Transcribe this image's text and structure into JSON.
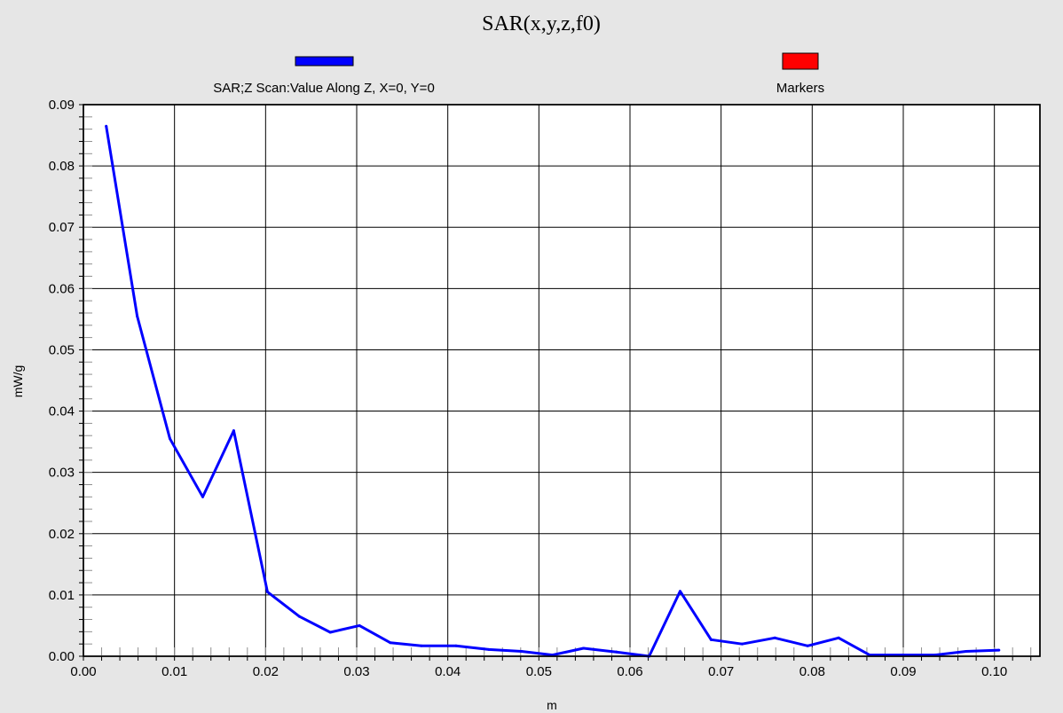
{
  "chart_data": {
    "type": "line",
    "title": "SAR(x,y,z,f0)",
    "xlabel": "m",
    "ylabel": "mW/g",
    "xlim": [
      0.0,
      0.105
    ],
    "ylim": [
      0.0,
      0.09
    ],
    "x_ticks": [
      "0.00",
      "0.01",
      "0.02",
      "0.03",
      "0.04",
      "0.05",
      "0.06",
      "0.07",
      "0.08",
      "0.09",
      "0.10"
    ],
    "y_ticks": [
      "0.00",
      "0.01",
      "0.02",
      "0.03",
      "0.04",
      "0.05",
      "0.06",
      "0.07",
      "0.08",
      "0.09"
    ],
    "grid": true,
    "legend_position": "top",
    "series": [
      {
        "name": "SAR;Z Scan:Value Along Z, X=0, Y=0",
        "color": "#0000ff",
        "x": [
          0.0025,
          0.0059,
          0.0095,
          0.0131,
          0.0165,
          0.0202,
          0.0237,
          0.0271,
          0.0303,
          0.0337,
          0.0371,
          0.0409,
          0.0445,
          0.0481,
          0.0515,
          0.0549,
          0.0585,
          0.0621,
          0.0655,
          0.0689,
          0.0723,
          0.0759,
          0.0795,
          0.0829,
          0.0863,
          0.0899,
          0.0935,
          0.0969,
          0.1005
        ],
        "y": [
          0.0865,
          0.0555,
          0.0355,
          0.026,
          0.0368,
          0.0105,
          0.0065,
          0.0039,
          0.005,
          0.0022,
          0.0017,
          0.0017,
          0.0011,
          0.0008,
          0.0002,
          0.0013,
          0.0007,
          0.0,
          0.0106,
          0.0027,
          0.002,
          0.003,
          0.0017,
          0.003,
          0.0002,
          0.0002,
          0.0002,
          0.0008,
          0.001
        ]
      },
      {
        "name": "Markers",
        "color": "#ff0000",
        "x": [],
        "y": []
      }
    ]
  }
}
